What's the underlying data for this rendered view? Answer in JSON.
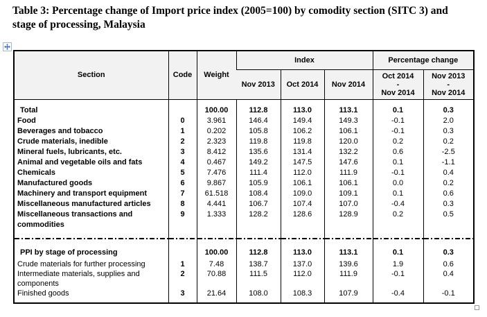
{
  "title": "Table 3: Percentage change of Import price index (2005=100) by comodity section (SITC 3) and stage of processing, Malaysia",
  "colors": {
    "header_bg": "#f2f2f2",
    "border": "#000000",
    "move_handle_arrow": "#4a72b8",
    "resize_handle_border": "#9a9a9a"
  },
  "icons": {
    "move_handle": "move-cross-icon",
    "resize_handle": "resize-square-icon"
  },
  "table": {
    "header": {
      "section": "Section",
      "code": "Code",
      "weight": "Weight",
      "index_group": "Index",
      "pct_group": "Percentage change",
      "index_cols": [
        "Nov 2013",
        "Oct 2014",
        "Nov 2014"
      ],
      "pct_cols": [
        {
          "lines": [
            "Oct 2014",
            "-",
            "Nov 2014"
          ]
        },
        {
          "lines": [
            "Nov 2013",
            "-",
            "Nov 2014"
          ]
        }
      ]
    },
    "sections": [
      {
        "name": "sitc",
        "rows": [
          {
            "label": "Total",
            "code": "",
            "weight": "100.00",
            "values": [
              "112.8",
              "113.0",
              "113.1",
              "0.1",
              "0.3"
            ],
            "bold": true,
            "label_bold": true
          },
          {
            "label": "Food",
            "code": "0",
            "weight": "3.961",
            "values": [
              "146.4",
              "149.4",
              "149.3",
              "-0.1",
              "2.0"
            ],
            "label_bold": true
          },
          {
            "label": "Beverages and tobacco",
            "code": "1",
            "weight": "0.202",
            "values": [
              "105.8",
              "106.2",
              "106.1",
              "-0.1",
              "0.3"
            ],
            "label_bold": true
          },
          {
            "label": "Crude materials, inedible",
            "code": "2",
            "weight": "2.323",
            "values": [
              "119.8",
              "119.8",
              "120.0",
              "0.2",
              "0.2"
            ],
            "label_bold": true
          },
          {
            "label": "Mineral fuels, lubricants, etc.",
            "code": "3",
            "weight": "8.412",
            "values": [
              "135.6",
              "131.4",
              "132.2",
              "0.6",
              "-2.5"
            ],
            "label_bold": true
          },
          {
            "label": "Animal and vegetable oils and fats",
            "code": "4",
            "weight": "0.467",
            "values": [
              "149.2",
              "147.5",
              "147.6",
              "0.1",
              "-1.1"
            ],
            "label_bold": true
          },
          {
            "label": "Chemicals",
            "code": "5",
            "weight": "7.476",
            "values": [
              "111.4",
              "112.0",
              "111.9",
              "-0.1",
              "0.4"
            ],
            "label_bold": true
          },
          {
            "label": "Manufactured goods",
            "code": "6",
            "weight": "9.867",
            "values": [
              "105.9",
              "106.1",
              "106.1",
              "0.0",
              "0.2"
            ],
            "label_bold": true
          },
          {
            "label": "Machinery and transport equipment",
            "code": "7",
            "weight": "61.518",
            "values": [
              "108.4",
              "109.0",
              "109.1",
              "0.1",
              "0.6"
            ],
            "label_bold": true
          },
          {
            "label": "Miscellaneous manufactured articles",
            "code": "8",
            "weight": "4.441",
            "values": [
              "106.7",
              "107.4",
              "107.0",
              "-0.4",
              "0.3"
            ],
            "label_bold": true
          },
          {
            "label": "Miscellaneous transactions and commodities",
            "code": "9",
            "weight": "1.333",
            "values": [
              "128.2",
              "128.6",
              "128.9",
              "0.2",
              "0.5"
            ],
            "label_bold": true
          }
        ]
      },
      {
        "name": "ppi",
        "rows": [
          {
            "label": "PPI by stage of processing",
            "code": "",
            "weight": "100.00",
            "values": [
              "112.8",
              "113.0",
              "113.1",
              "0.1",
              "0.3"
            ],
            "bold": true,
            "label_bold": true,
            "gap_after": true
          },
          {
            "label": "Crude materials for further processing",
            "code": "1",
            "weight": "7.48",
            "values": [
              "138.7",
              "137.0",
              "139.6",
              "1.9",
              "0.6"
            ]
          },
          {
            "label": "Intermediate materials, supplies and components",
            "code": "2",
            "weight": "70.88",
            "values": [
              "111.5",
              "112.0",
              "111.9",
              "-0.1",
              "0.4"
            ]
          },
          {
            "label": "Finished goods",
            "code": "3",
            "weight": "21.64",
            "values": [
              "108.0",
              "108.3",
              "107.9",
              "-0.4",
              "-0.1"
            ]
          }
        ]
      }
    ]
  }
}
